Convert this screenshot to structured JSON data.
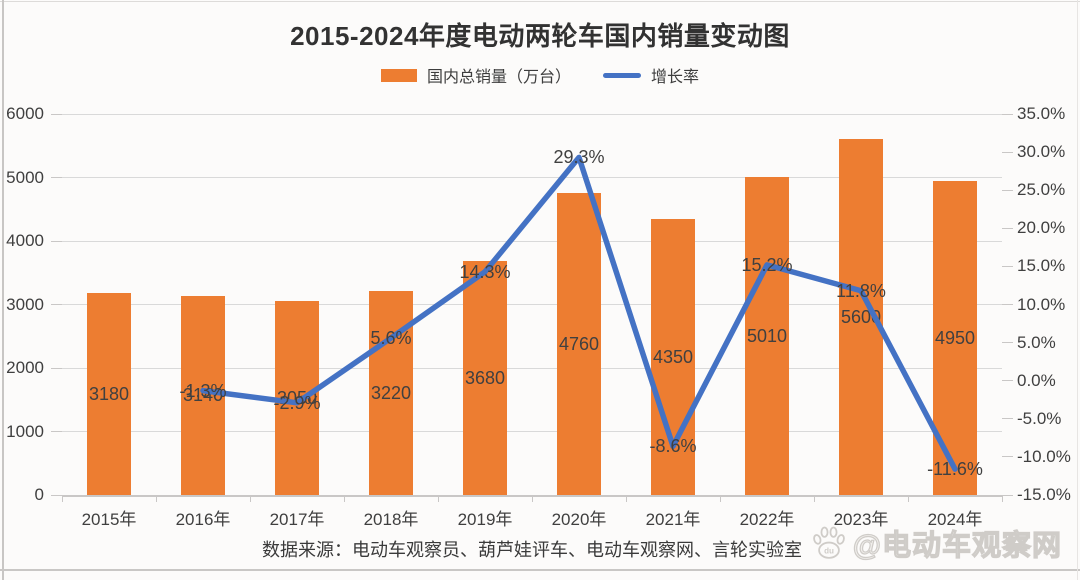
{
  "title": "2015-2024年度电动两轮车国内销量变动图",
  "legend": {
    "bar_label": "国内总销量（万台）",
    "line_label": "增长率"
  },
  "source_note": "数据来源：电动车观察员、葫芦娃评车、电动车观察网、言轮实验室",
  "watermark": {
    "handle": "@电动车观察网",
    "icon": "baidu-paw-icon"
  },
  "colors": {
    "bar": "#ED7D31",
    "line": "#4472C4",
    "grid": "#D9D9D9",
    "axis": "#C9C7C6",
    "data_label": "#404040",
    "title_text": "#323232",
    "watermark_outline": "#CFCCC8"
  },
  "chart_data": {
    "type": "combo bar+line",
    "title": "2015-2024年度电动两轮车国内销量变动图",
    "categories": [
      "2015年",
      "2016年",
      "2017年",
      "2018年",
      "2019年",
      "2020年",
      "2021年",
      "2022年",
      "2023年",
      "2024年"
    ],
    "series": [
      {
        "name": "国内总销量（万台）",
        "type": "bar",
        "axis": "left",
        "color": "#ED7D31",
        "values": [
          3180,
          3140,
          3050,
          3220,
          3680,
          4760,
          4350,
          5010,
          5600,
          4950
        ]
      },
      {
        "name": "增长率",
        "type": "line",
        "axis": "right",
        "color": "#4472C4",
        "values": [
          null,
          -1.3,
          -2.9,
          5.6,
          14.3,
          29.3,
          -8.6,
          15.2,
          11.8,
          -11.6
        ],
        "labels": [
          "",
          "-1.3%",
          "-2.9%",
          "5.6%",
          "14.3%",
          "29.3%",
          "-8.6%",
          "15.2%",
          "11.8%",
          "-11.6%"
        ]
      }
    ],
    "left_axis": {
      "min": 0,
      "max": 6000,
      "step": 1000,
      "labels": [
        "0",
        "1000",
        "2000",
        "3000",
        "4000",
        "5000",
        "6000"
      ]
    },
    "right_axis": {
      "min": -15,
      "max": 35,
      "step": 5,
      "labels": [
        "35.0%",
        "30.0%",
        "25.0%",
        "20.0%",
        "15.0%",
        "10.0%",
        "5.0%",
        "0.0%",
        "-5.0%",
        "-10.0%",
        "-15.0%"
      ]
    },
    "grid": "horizontal",
    "legend_position": "top"
  }
}
